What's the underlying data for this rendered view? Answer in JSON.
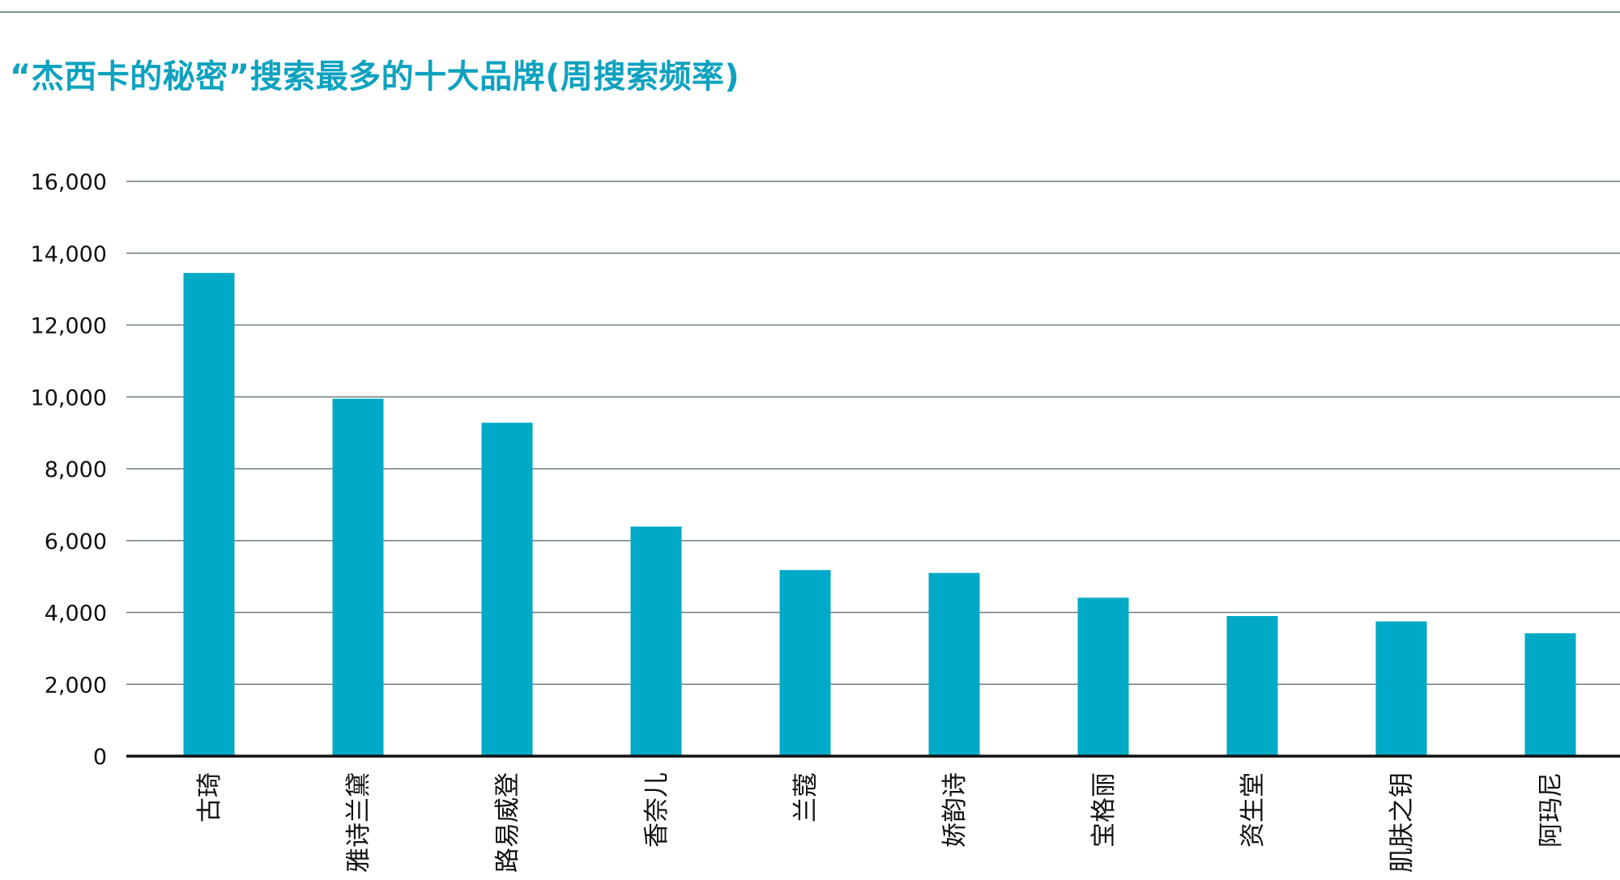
{
  "title": "“杰西卡的秘密”搜索最多的十大品牌(周搜索频率)",
  "colors": {
    "bar": "#00a9c6",
    "title": "#0ea2bf",
    "grid": "#6f7e86",
    "axis": "#111111"
  },
  "chart_data": {
    "type": "bar",
    "title": "“杰西卡的秘密”搜索最多的十大品牌(周搜索频率)",
    "xlabel": "",
    "ylabel": "",
    "categories": [
      "古琦",
      "雅诗兰黛",
      "路易威登",
      "香奈儿",
      "兰蔻",
      "娇韵诗",
      "宝格丽",
      "资生堂",
      "肌肤之钥",
      "阿玛尼"
    ],
    "values": [
      13450,
      9950,
      9280,
      6390,
      5180,
      5100,
      4410,
      3900,
      3750,
      3420
    ],
    "ylim": [
      0,
      16000
    ],
    "yticks": [
      0,
      2000,
      4000,
      6000,
      8000,
      10000,
      12000,
      14000,
      16000
    ],
    "ytick_labels": [
      "0",
      "2,000",
      "4,000",
      "6,000",
      "8,000",
      "10,000",
      "12,000",
      "14,000",
      "16,000"
    ],
    "grid": true,
    "legend": "none"
  }
}
